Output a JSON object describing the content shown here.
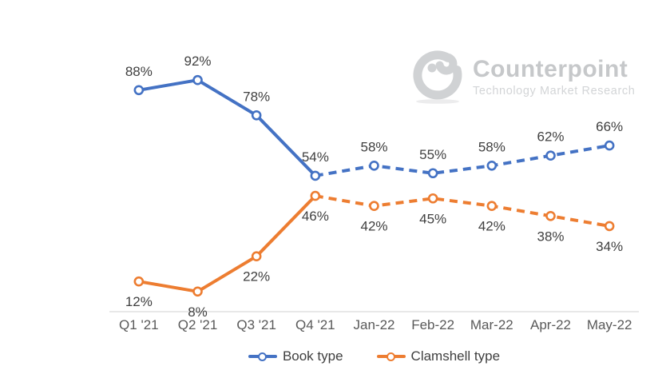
{
  "watermark": {
    "brand": "Counterpoint",
    "tagline": "Technology Market Research"
  },
  "chart_data": {
    "type": "line",
    "title": "",
    "categories": [
      "Q1 '21",
      "Q2 '21",
      "Q3 '21",
      "Q4 '21",
      "Jan-22",
      "Feb-22",
      "Mar-22",
      "Apr-22",
      "May-22"
    ],
    "series": [
      {
        "name": "Book type",
        "color": "#4472C4",
        "values": [
          88,
          92,
          78,
          54,
          58,
          55,
          58,
          62,
          66
        ],
        "solid_through_index": 3,
        "label_position": "above"
      },
      {
        "name": "Clamshell type",
        "color": "#ED7D31",
        "values": [
          12,
          8,
          22,
          46,
          42,
          45,
          42,
          38,
          34
        ],
        "solid_through_index": 3,
        "label_position": "below"
      }
    ],
    "ylim": [
      0,
      100
    ],
    "label_suffix": "%",
    "grid": false,
    "legend_position": "bottom",
    "axis_color": "#d9d9d9",
    "data_label_color": "#404040",
    "tick_label_color": "#595959",
    "marker": "open-circle"
  }
}
